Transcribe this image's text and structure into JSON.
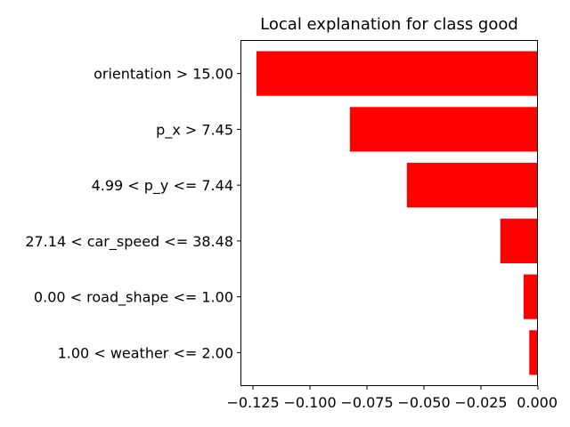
{
  "chart_data": {
    "type": "bar",
    "orientation": "horizontal",
    "title": "Local explanation for class good",
    "xlabel": "",
    "ylabel": "",
    "categories": [
      "orientation > 15.00",
      "p_x > 7.45",
      "4.99 < p_y <= 7.44",
      "27.14 < car_speed <= 38.48",
      "0.00 < road_shape <= 1.00",
      "1.00 < weather <= 2.00"
    ],
    "values": [
      -0.1235,
      -0.0825,
      -0.0575,
      -0.0165,
      -0.0063,
      -0.0038
    ],
    "bar_color": "#ff0000",
    "xlim": [
      -0.1305,
      0.0
    ],
    "xticks": [
      -0.125,
      -0.1,
      -0.075,
      -0.05,
      -0.025,
      0.0
    ],
    "xtick_labels": [
      "−0.125",
      "−0.100",
      "−0.075",
      "−0.050",
      "−0.025",
      "0.000"
    ],
    "grid": false,
    "legend": "none"
  }
}
